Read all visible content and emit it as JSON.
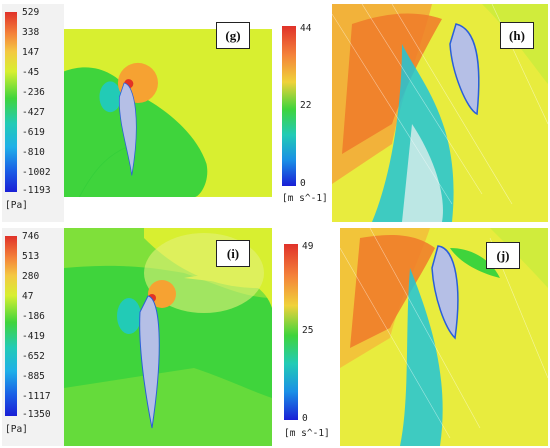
{
  "panels": {
    "g": {
      "tag": "(g)",
      "unit": "[Pa]",
      "scale": [
        "529",
        "338",
        "147",
        "-45",
        "-236",
        "-427",
        "-619",
        "-810",
        "-1002",
        "-1193"
      ]
    },
    "h": {
      "tag": "(h)",
      "unit": "[m s^-1]",
      "scale": [
        "44",
        "22",
        "0"
      ]
    },
    "i": {
      "tag": "(i)",
      "unit": "[Pa]",
      "scale": [
        "746",
        "513",
        "280",
        "47",
        "-186",
        "-419",
        "-652",
        "-885",
        "-1117",
        "-1350"
      ]
    },
    "j": {
      "tag": "(j)",
      "unit": "[m s^-1]",
      "scale": [
        "49",
        "25",
        "0"
      ]
    }
  },
  "colors": {
    "pressure_bg": "#d8ef30",
    "pressure_mid": "#3fd43c",
    "pressure_low": "#22cbb6",
    "pressure_high": "#f6a232",
    "pressure_peak": "#e33224",
    "velocity_bg": "#e9ec3c",
    "velocity_high": "#f05a22",
    "velocity_wake": "#20c6d8",
    "airfoil": "#b5bfe6"
  }
}
